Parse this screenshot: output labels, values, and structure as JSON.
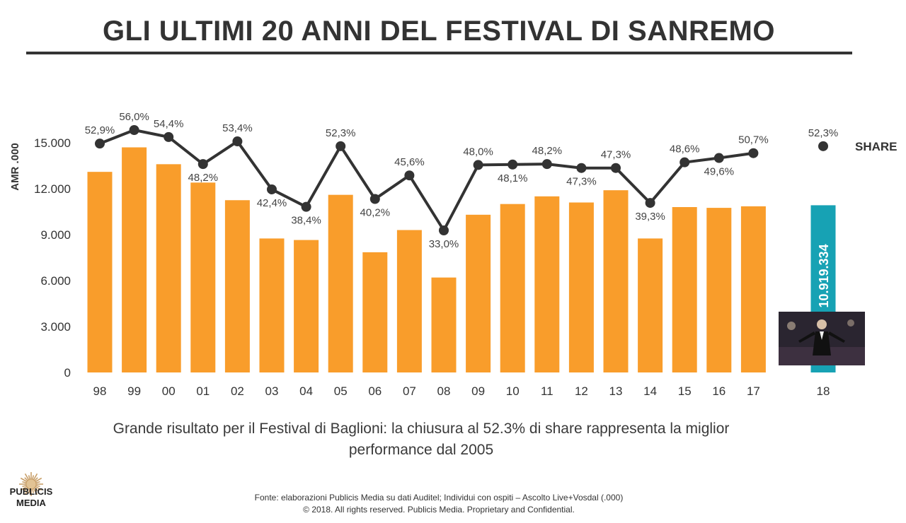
{
  "title": "GLI ULTIMI 20 ANNI DEL FESTIVAL DI SANREMO",
  "caption": "Grande risultato per il Festival di Baglioni: la chiusura al 52.3% di share rappresenta la miglior performance dal 2005",
  "source_note": "Fonte: elaborazioni Publicis Media su dati Auditel; Individui con ospiti – Ascolto Live+Vosdal (.000)",
  "copyright": "© 2018. All rights reserved. Publicis Media. Proprietary and Confidential.",
  "logo": {
    "line1": "PUBLICIS",
    "line2": "MEDIA",
    "colors": {
      "sun": "#c9a06a"
    }
  },
  "colors": {
    "bar": "#f99d2b",
    "highlight_bar": "#17a2b4",
    "line": "#333333",
    "text": "#333333"
  },
  "chart_data": {
    "type": "bar",
    "categories": [
      "98",
      "99",
      "00",
      "01",
      "02",
      "03",
      "04",
      "05",
      "06",
      "07",
      "08",
      "09",
      "10",
      "11",
      "12",
      "13",
      "14",
      "15",
      "16",
      "17",
      "18"
    ],
    "ylabel": "AMR .000",
    "ylim": [
      0,
      15000
    ],
    "yticks": [
      "0",
      "3.000",
      "6.000",
      "9.000",
      "12.000",
      "15.000"
    ],
    "ytick_values": [
      0,
      3000,
      6000,
      9000,
      12000,
      15000
    ],
    "grid": false,
    "series": [
      {
        "kind": "bar",
        "values": [
          13100,
          14700,
          13600,
          12400,
          11250,
          8750,
          8650,
          11600,
          7850,
          9300,
          6200,
          10300,
          11000,
          11500,
          11100,
          11900,
          8750,
          10800,
          10750,
          10850,
          10919.334
        ],
        "highlight_index": 20,
        "highlight_label": "10.919.334"
      },
      {
        "kind": "line",
        "name": "SHARE",
        "values": [
          52.9,
          56.0,
          54.4,
          48.2,
          53.4,
          42.4,
          38.4,
          52.3,
          40.2,
          45.6,
          33.0,
          48.0,
          48.1,
          48.2,
          47.3,
          47.3,
          39.3,
          48.6,
          49.6,
          50.7,
          52.3
        ],
        "labels": [
          "52,9%",
          "56,0%",
          "54,4%",
          "48,2%",
          "53,4%",
          "42,4%",
          "38,4%",
          "52,3%",
          "40,2%",
          "45,6%",
          "33,0%",
          "48,0%",
          "48,1%",
          "48,2%",
          "47,3%",
          "47,3%",
          "39,3%",
          "48,6%",
          "49,6%",
          "50,7%",
          "52,3%"
        ],
        "label_positions": [
          "above",
          "above",
          "above",
          "below",
          "above",
          "below",
          "below",
          "above",
          "below",
          "above",
          "below",
          "above",
          "below",
          "above",
          "below",
          "above",
          "below",
          "above",
          "below",
          "above",
          "above"
        ]
      }
    ],
    "legend": {
      "label": "SHARE",
      "placement": "right"
    }
  }
}
